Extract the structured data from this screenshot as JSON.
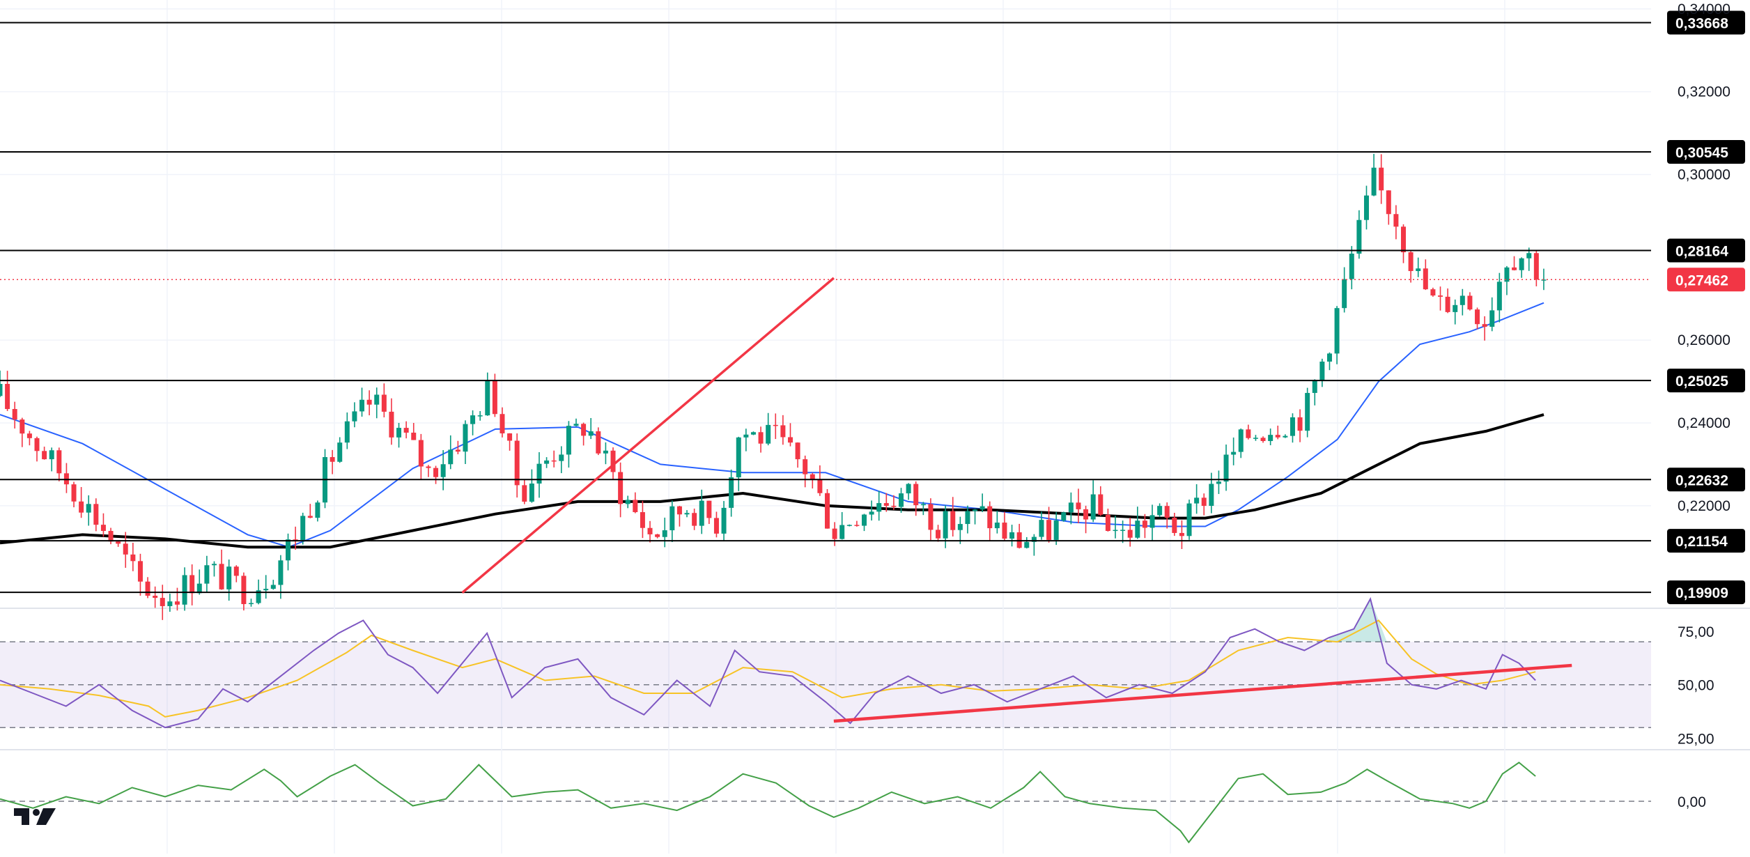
{
  "chart_data": [
    {
      "type": "candlestick",
      "panel": "price",
      "y_ticks": [
        "0,34000",
        "0,32000",
        "0,30000",
        "0,26000",
        "0,24000",
        "0,22000"
      ],
      "y_tick_values": [
        0.34,
        0.32,
        0.3,
        0.26,
        0.24,
        0.22
      ],
      "ylim": [
        0.1954,
        0.3408
      ],
      "grid": true,
      "horizontal_levels": [
        {
          "label": "0,33668",
          "value": 0.33668
        },
        {
          "label": "0,30545",
          "value": 0.30545
        },
        {
          "label": "0,28164",
          "value": 0.28164
        },
        {
          "label": "0,25025",
          "value": 0.25025
        },
        {
          "label": "0,22632",
          "value": 0.22632
        },
        {
          "label": "0,21154",
          "value": 0.21154
        },
        {
          "label": "0,19909",
          "value": 0.19909
        }
      ],
      "last_price": {
        "label": "0,27462",
        "value": 0.27462,
        "color": "#f23645"
      },
      "trendline": {
        "color": "#f23645",
        "start": [
          0.28,
          0.199
        ],
        "end": [
          0.505,
          0.275
        ]
      },
      "key_closes": [
        {
          "t": 0.0,
          "close": 0.2465
        },
        {
          "t": 0.02,
          "close": 0.236
        },
        {
          "t": 0.045,
          "close": 0.224
        },
        {
          "t": 0.065,
          "close": 0.2135
        },
        {
          "t": 0.085,
          "close": 0.201
        },
        {
          "t": 0.1,
          "close": 0.1975
        },
        {
          "t": 0.125,
          "close": 0.2045
        },
        {
          "t": 0.15,
          "close": 0.1995
        },
        {
          "t": 0.165,
          "close": 0.204
        },
        {
          "t": 0.18,
          "close": 0.214
        },
        {
          "t": 0.205,
          "close": 0.235
        },
        {
          "t": 0.225,
          "close": 0.2455
        },
        {
          "t": 0.245,
          "close": 0.2365
        },
        {
          "t": 0.26,
          "close": 0.228
        },
        {
          "t": 0.28,
          "close": 0.237
        },
        {
          "t": 0.297,
          "close": 0.249
        },
        {
          "t": 0.315,
          "close": 0.223
        },
        {
          "t": 0.335,
          "close": 0.233
        },
        {
          "t": 0.355,
          "close": 0.24
        },
        {
          "t": 0.375,
          "close": 0.224
        },
        {
          "t": 0.395,
          "close": 0.2125
        },
        {
          "t": 0.415,
          "close": 0.22
        },
        {
          "t": 0.435,
          "close": 0.216
        },
        {
          "t": 0.448,
          "close": 0.238
        },
        {
          "t": 0.47,
          "close": 0.236
        },
        {
          "t": 0.49,
          "close": 0.228
        },
        {
          "t": 0.505,
          "close": 0.214
        },
        {
          "t": 0.525,
          "close": 0.22
        },
        {
          "t": 0.55,
          "close": 0.223
        },
        {
          "t": 0.57,
          "close": 0.215
        },
        {
          "t": 0.595,
          "close": 0.218
        },
        {
          "t": 0.615,
          "close": 0.211
        },
        {
          "t": 0.635,
          "close": 0.214
        },
        {
          "t": 0.66,
          "close": 0.22
        },
        {
          "t": 0.68,
          "close": 0.213
        },
        {
          "t": 0.7,
          "close": 0.218
        },
        {
          "t": 0.715,
          "close": 0.214
        },
        {
          "t": 0.735,
          "close": 0.226
        },
        {
          "t": 0.755,
          "close": 0.237
        },
        {
          "t": 0.775,
          "close": 0.24
        },
        {
          "t": 0.79,
          "close": 0.242
        },
        {
          "t": 0.805,
          "close": 0.26
        },
        {
          "t": 0.82,
          "close": 0.282
        },
        {
          "t": 0.832,
          "close": 0.2985
        },
        {
          "t": 0.845,
          "close": 0.29
        },
        {
          "t": 0.858,
          "close": 0.276
        },
        {
          "t": 0.87,
          "close": 0.268
        },
        {
          "t": 0.885,
          "close": 0.271
        },
        {
          "t": 0.9,
          "close": 0.265
        },
        {
          "t": 0.912,
          "close": 0.28
        },
        {
          "t": 0.925,
          "close": 0.281
        },
        {
          "t": 0.935,
          "close": 0.2746
        }
      ],
      "moving_averages": [
        {
          "color": "#2962ff",
          "points": [
            [
              0.0,
              0.242
            ],
            [
              0.05,
              0.235
            ],
            [
              0.1,
              0.224
            ],
            [
              0.15,
              0.213
            ],
            [
              0.175,
              0.21
            ],
            [
              0.2,
              0.214
            ],
            [
              0.25,
              0.229
            ],
            [
              0.3,
              0.2385
            ],
            [
              0.35,
              0.239
            ],
            [
              0.4,
              0.23
            ],
            [
              0.45,
              0.228
            ],
            [
              0.5,
              0.228
            ],
            [
              0.55,
              0.221
            ],
            [
              0.6,
              0.219
            ],
            [
              0.65,
              0.216
            ],
            [
              0.7,
              0.215
            ],
            [
              0.73,
              0.215
            ],
            [
              0.75,
              0.219
            ],
            [
              0.78,
              0.227
            ],
            [
              0.81,
              0.236
            ],
            [
              0.835,
              0.25
            ],
            [
              0.86,
              0.259
            ],
            [
              0.89,
              0.262
            ],
            [
              0.91,
              0.265
            ],
            [
              0.935,
              0.269
            ]
          ]
        },
        {
          "color": "#000000",
          "points": [
            [
              0.0,
              0.211
            ],
            [
              0.05,
              0.213
            ],
            [
              0.1,
              0.212
            ],
            [
              0.15,
              0.21
            ],
            [
              0.2,
              0.21
            ],
            [
              0.25,
              0.214
            ],
            [
              0.3,
              0.218
            ],
            [
              0.35,
              0.221
            ],
            [
              0.4,
              0.221
            ],
            [
              0.45,
              0.223
            ],
            [
              0.5,
              0.22
            ],
            [
              0.55,
              0.219
            ],
            [
              0.6,
              0.219
            ],
            [
              0.65,
              0.218
            ],
            [
              0.7,
              0.217
            ],
            [
              0.73,
              0.217
            ],
            [
              0.76,
              0.219
            ],
            [
              0.8,
              0.223
            ],
            [
              0.83,
              0.229
            ],
            [
              0.86,
              0.235
            ],
            [
              0.9,
              0.238
            ],
            [
              0.935,
              0.242
            ]
          ]
        }
      ],
      "colors": {
        "up": "#089981",
        "down": "#f23645"
      }
    },
    {
      "type": "line",
      "panel": "rsi",
      "y_ticks": [
        "75,00",
        "50,00",
        "25,00"
      ],
      "y_tick_values": [
        75,
        50,
        25
      ],
      "ylim": [
        20,
        85
      ],
      "band": [
        30,
        70
      ],
      "band_color": "#7e57c2",
      "rsi_color": "#7e57c2",
      "signal_color": "#f7c325",
      "rsi_points": [
        [
          0.0,
          52
        ],
        [
          0.02,
          46
        ],
        [
          0.04,
          40
        ],
        [
          0.06,
          50
        ],
        [
          0.08,
          38
        ],
        [
          0.1,
          30
        ],
        [
          0.12,
          34
        ],
        [
          0.135,
          48
        ],
        [
          0.15,
          42
        ],
        [
          0.17,
          54
        ],
        [
          0.19,
          66
        ],
        [
          0.205,
          74
        ],
        [
          0.22,
          80
        ],
        [
          0.235,
          64
        ],
        [
          0.25,
          58
        ],
        [
          0.265,
          46
        ],
        [
          0.28,
          60
        ],
        [
          0.295,
          74
        ],
        [
          0.31,
          44
        ],
        [
          0.33,
          58
        ],
        [
          0.35,
          62
        ],
        [
          0.37,
          44
        ],
        [
          0.39,
          36
        ],
        [
          0.41,
          52
        ],
        [
          0.43,
          40
        ],
        [
          0.445,
          66
        ],
        [
          0.46,
          56
        ],
        [
          0.48,
          54
        ],
        [
          0.5,
          42
        ],
        [
          0.515,
          32
        ],
        [
          0.53,
          46
        ],
        [
          0.55,
          54
        ],
        [
          0.57,
          46
        ],
        [
          0.59,
          50
        ],
        [
          0.61,
          42
        ],
        [
          0.63,
          48
        ],
        [
          0.65,
          54
        ],
        [
          0.67,
          44
        ],
        [
          0.69,
          50
        ],
        [
          0.71,
          46
        ],
        [
          0.73,
          56
        ],
        [
          0.745,
          72
        ],
        [
          0.76,
          76
        ],
        [
          0.775,
          70
        ],
        [
          0.79,
          66
        ],
        [
          0.805,
          72
        ],
        [
          0.82,
          76
        ],
        [
          0.83,
          90
        ],
        [
          0.84,
          60
        ],
        [
          0.855,
          50
        ],
        [
          0.87,
          48
        ],
        [
          0.885,
          52
        ],
        [
          0.9,
          48
        ],
        [
          0.91,
          64
        ],
        [
          0.92,
          60
        ],
        [
          0.93,
          52
        ]
      ],
      "signal_points": [
        [
          0.0,
          50
        ],
        [
          0.03,
          48
        ],
        [
          0.06,
          45
        ],
        [
          0.09,
          40
        ],
        [
          0.1,
          35
        ],
        [
          0.12,
          38
        ],
        [
          0.15,
          44
        ],
        [
          0.18,
          52
        ],
        [
          0.21,
          65
        ],
        [
          0.225,
          73
        ],
        [
          0.25,
          66
        ],
        [
          0.28,
          58
        ],
        [
          0.3,
          62
        ],
        [
          0.33,
          52
        ],
        [
          0.36,
          54
        ],
        [
          0.39,
          46
        ],
        [
          0.42,
          46
        ],
        [
          0.45,
          58
        ],
        [
          0.48,
          56
        ],
        [
          0.51,
          44
        ],
        [
          0.54,
          48
        ],
        [
          0.57,
          50
        ],
        [
          0.6,
          47
        ],
        [
          0.63,
          48
        ],
        [
          0.66,
          50
        ],
        [
          0.69,
          48
        ],
        [
          0.72,
          52
        ],
        [
          0.75,
          66
        ],
        [
          0.78,
          72
        ],
        [
          0.81,
          70
        ],
        [
          0.835,
          80
        ],
        [
          0.855,
          62
        ],
        [
          0.87,
          55
        ],
        [
          0.89,
          50
        ],
        [
          0.91,
          52
        ],
        [
          0.93,
          56
        ]
      ],
      "trendline": {
        "color": "#f23645",
        "start": [
          0.505,
          33
        ],
        "end": [
          0.952,
          59
        ]
      }
    },
    {
      "type": "line",
      "panel": "oscillator",
      "y_ticks": [
        "0,00"
      ],
      "y_tick_values": [
        0
      ],
      "ylim": [
        -1.1,
        1.1
      ],
      "zero_line": true,
      "color": "#43a047",
      "points": [
        [
          0.0,
          0.05
        ],
        [
          0.02,
          -0.15
        ],
        [
          0.04,
          0.1
        ],
        [
          0.06,
          -0.05
        ],
        [
          0.08,
          0.3
        ],
        [
          0.1,
          0.1
        ],
        [
          0.12,
          0.35
        ],
        [
          0.14,
          0.25
        ],
        [
          0.16,
          0.7
        ],
        [
          0.17,
          0.45
        ],
        [
          0.18,
          0.1
        ],
        [
          0.2,
          0.55
        ],
        [
          0.215,
          0.8
        ],
        [
          0.23,
          0.4
        ],
        [
          0.25,
          -0.1
        ],
        [
          0.27,
          0.05
        ],
        [
          0.29,
          0.8
        ],
        [
          0.31,
          0.1
        ],
        [
          0.33,
          0.2
        ],
        [
          0.35,
          0.25
        ],
        [
          0.37,
          -0.15
        ],
        [
          0.39,
          -0.05
        ],
        [
          0.41,
          -0.2
        ],
        [
          0.43,
          0.1
        ],
        [
          0.45,
          0.6
        ],
        [
          0.47,
          0.4
        ],
        [
          0.49,
          -0.1
        ],
        [
          0.505,
          -0.35
        ],
        [
          0.52,
          -0.15
        ],
        [
          0.54,
          0.2
        ],
        [
          0.56,
          -0.05
        ],
        [
          0.58,
          0.1
        ],
        [
          0.6,
          -0.15
        ],
        [
          0.62,
          0.3
        ],
        [
          0.63,
          0.65
        ],
        [
          0.645,
          0.1
        ],
        [
          0.66,
          -0.05
        ],
        [
          0.68,
          -0.15
        ],
        [
          0.7,
          -0.2
        ],
        [
          0.715,
          -0.65
        ],
        [
          0.72,
          -0.9
        ],
        [
          0.735,
          -0.2
        ],
        [
          0.75,
          0.5
        ],
        [
          0.765,
          0.6
        ],
        [
          0.78,
          0.15
        ],
        [
          0.8,
          0.2
        ],
        [
          0.815,
          0.4
        ],
        [
          0.828,
          0.7
        ],
        [
          0.84,
          0.45
        ],
        [
          0.86,
          0.05
        ],
        [
          0.88,
          -0.05
        ],
        [
          0.89,
          -0.15
        ],
        [
          0.9,
          0.0
        ],
        [
          0.91,
          0.6
        ],
        [
          0.92,
          0.85
        ],
        [
          0.93,
          0.55
        ]
      ]
    }
  ]
}
